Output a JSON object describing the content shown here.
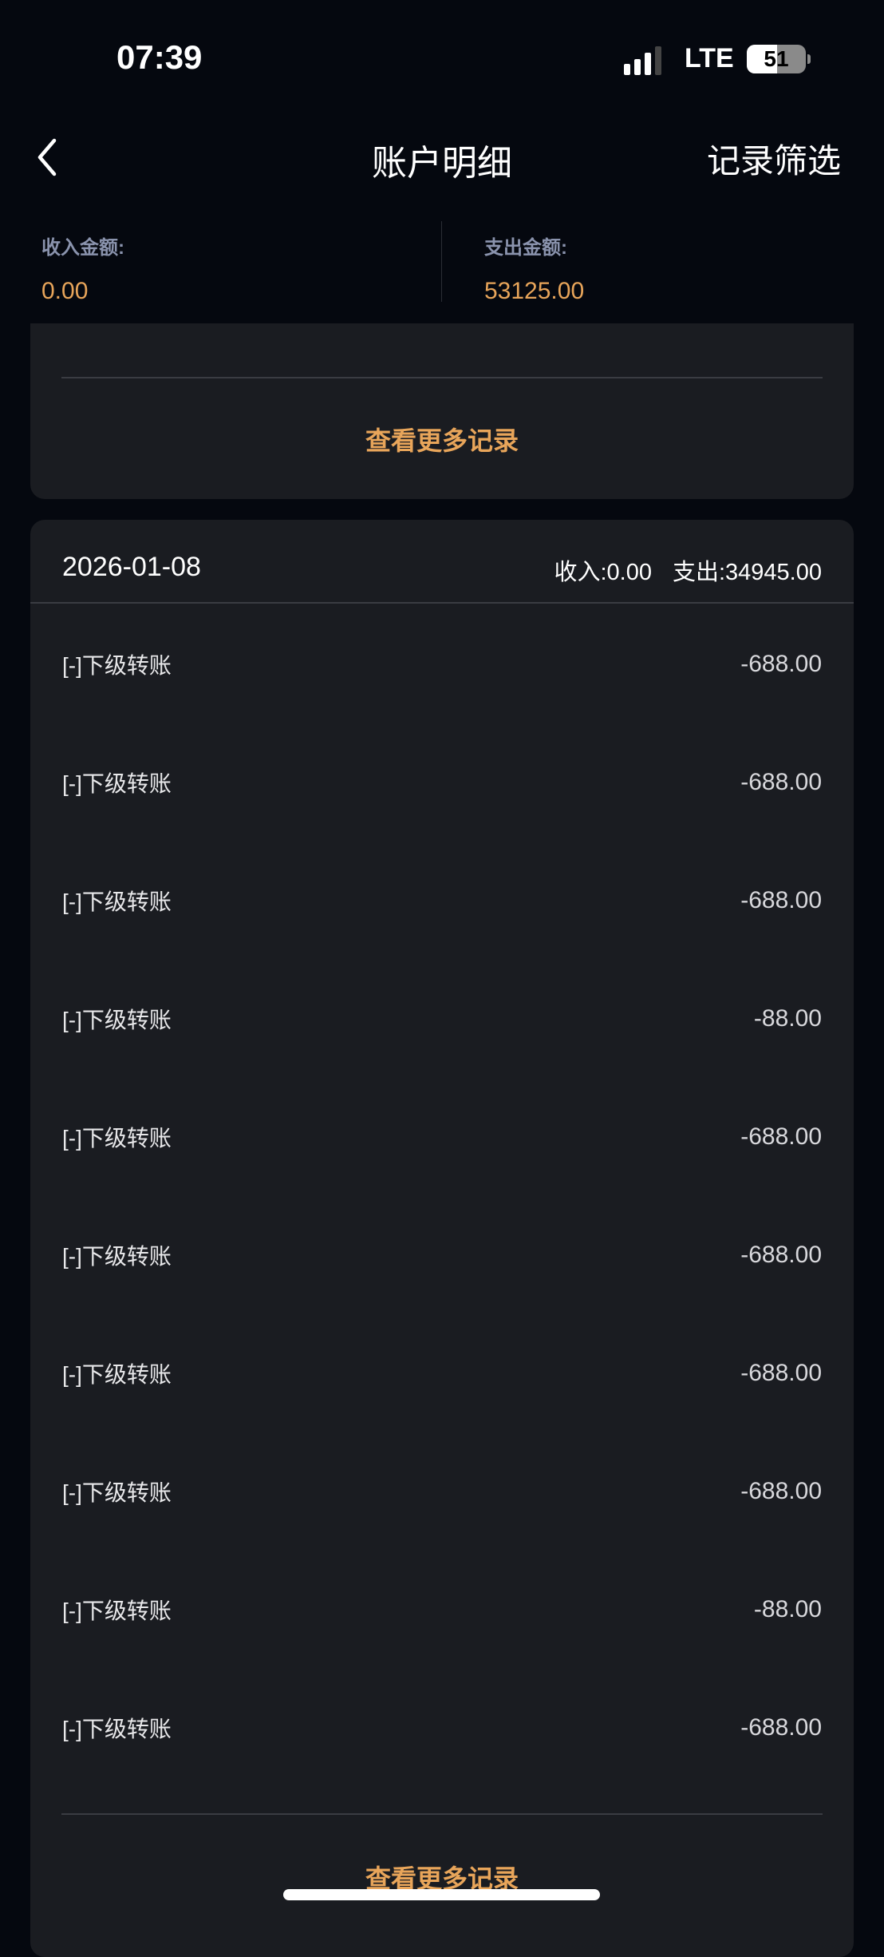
{
  "status_bar": {
    "time": "07:39",
    "network": "LTE",
    "battery": "51",
    "battery_percent": 51,
    "signal_bars_active": 3,
    "signal_bars_total": 4
  },
  "nav": {
    "back_icon": "chevron-left-icon",
    "title": "账户明细",
    "filter_label": "记录筛选"
  },
  "summary": {
    "income_label": "收入金额:",
    "income_value": "0.00",
    "expense_label": "支出金额:",
    "expense_value": "53125.00"
  },
  "prev_card": {
    "more_label": "查看更多记录"
  },
  "day_card": {
    "date": "2026-01-08",
    "income": "收入:0.00",
    "expense": "支出:34945.00",
    "rows": [
      {
        "label": "[-]下级转账",
        "amount": "-688.00"
      },
      {
        "label": "[-]下级转账",
        "amount": "-688.00"
      },
      {
        "label": "[-]下级转账",
        "amount": "-688.00"
      },
      {
        "label": "[-]下级转账",
        "amount": "-88.00"
      },
      {
        "label": "[-]下级转账",
        "amount": "-688.00"
      },
      {
        "label": "[-]下级转账",
        "amount": "-688.00"
      },
      {
        "label": "[-]下级转账",
        "amount": "-688.00"
      },
      {
        "label": "[-]下级转账",
        "amount": "-688.00"
      },
      {
        "label": "[-]下级转账",
        "amount": "-88.00"
      },
      {
        "label": "[-]下级转账",
        "amount": "-688.00"
      }
    ],
    "more_label": "查看更多记录"
  },
  "colors": {
    "background": "#05080f",
    "card": "#1a1c21",
    "accent": "#e8a55a",
    "label": "#8a93ad"
  }
}
